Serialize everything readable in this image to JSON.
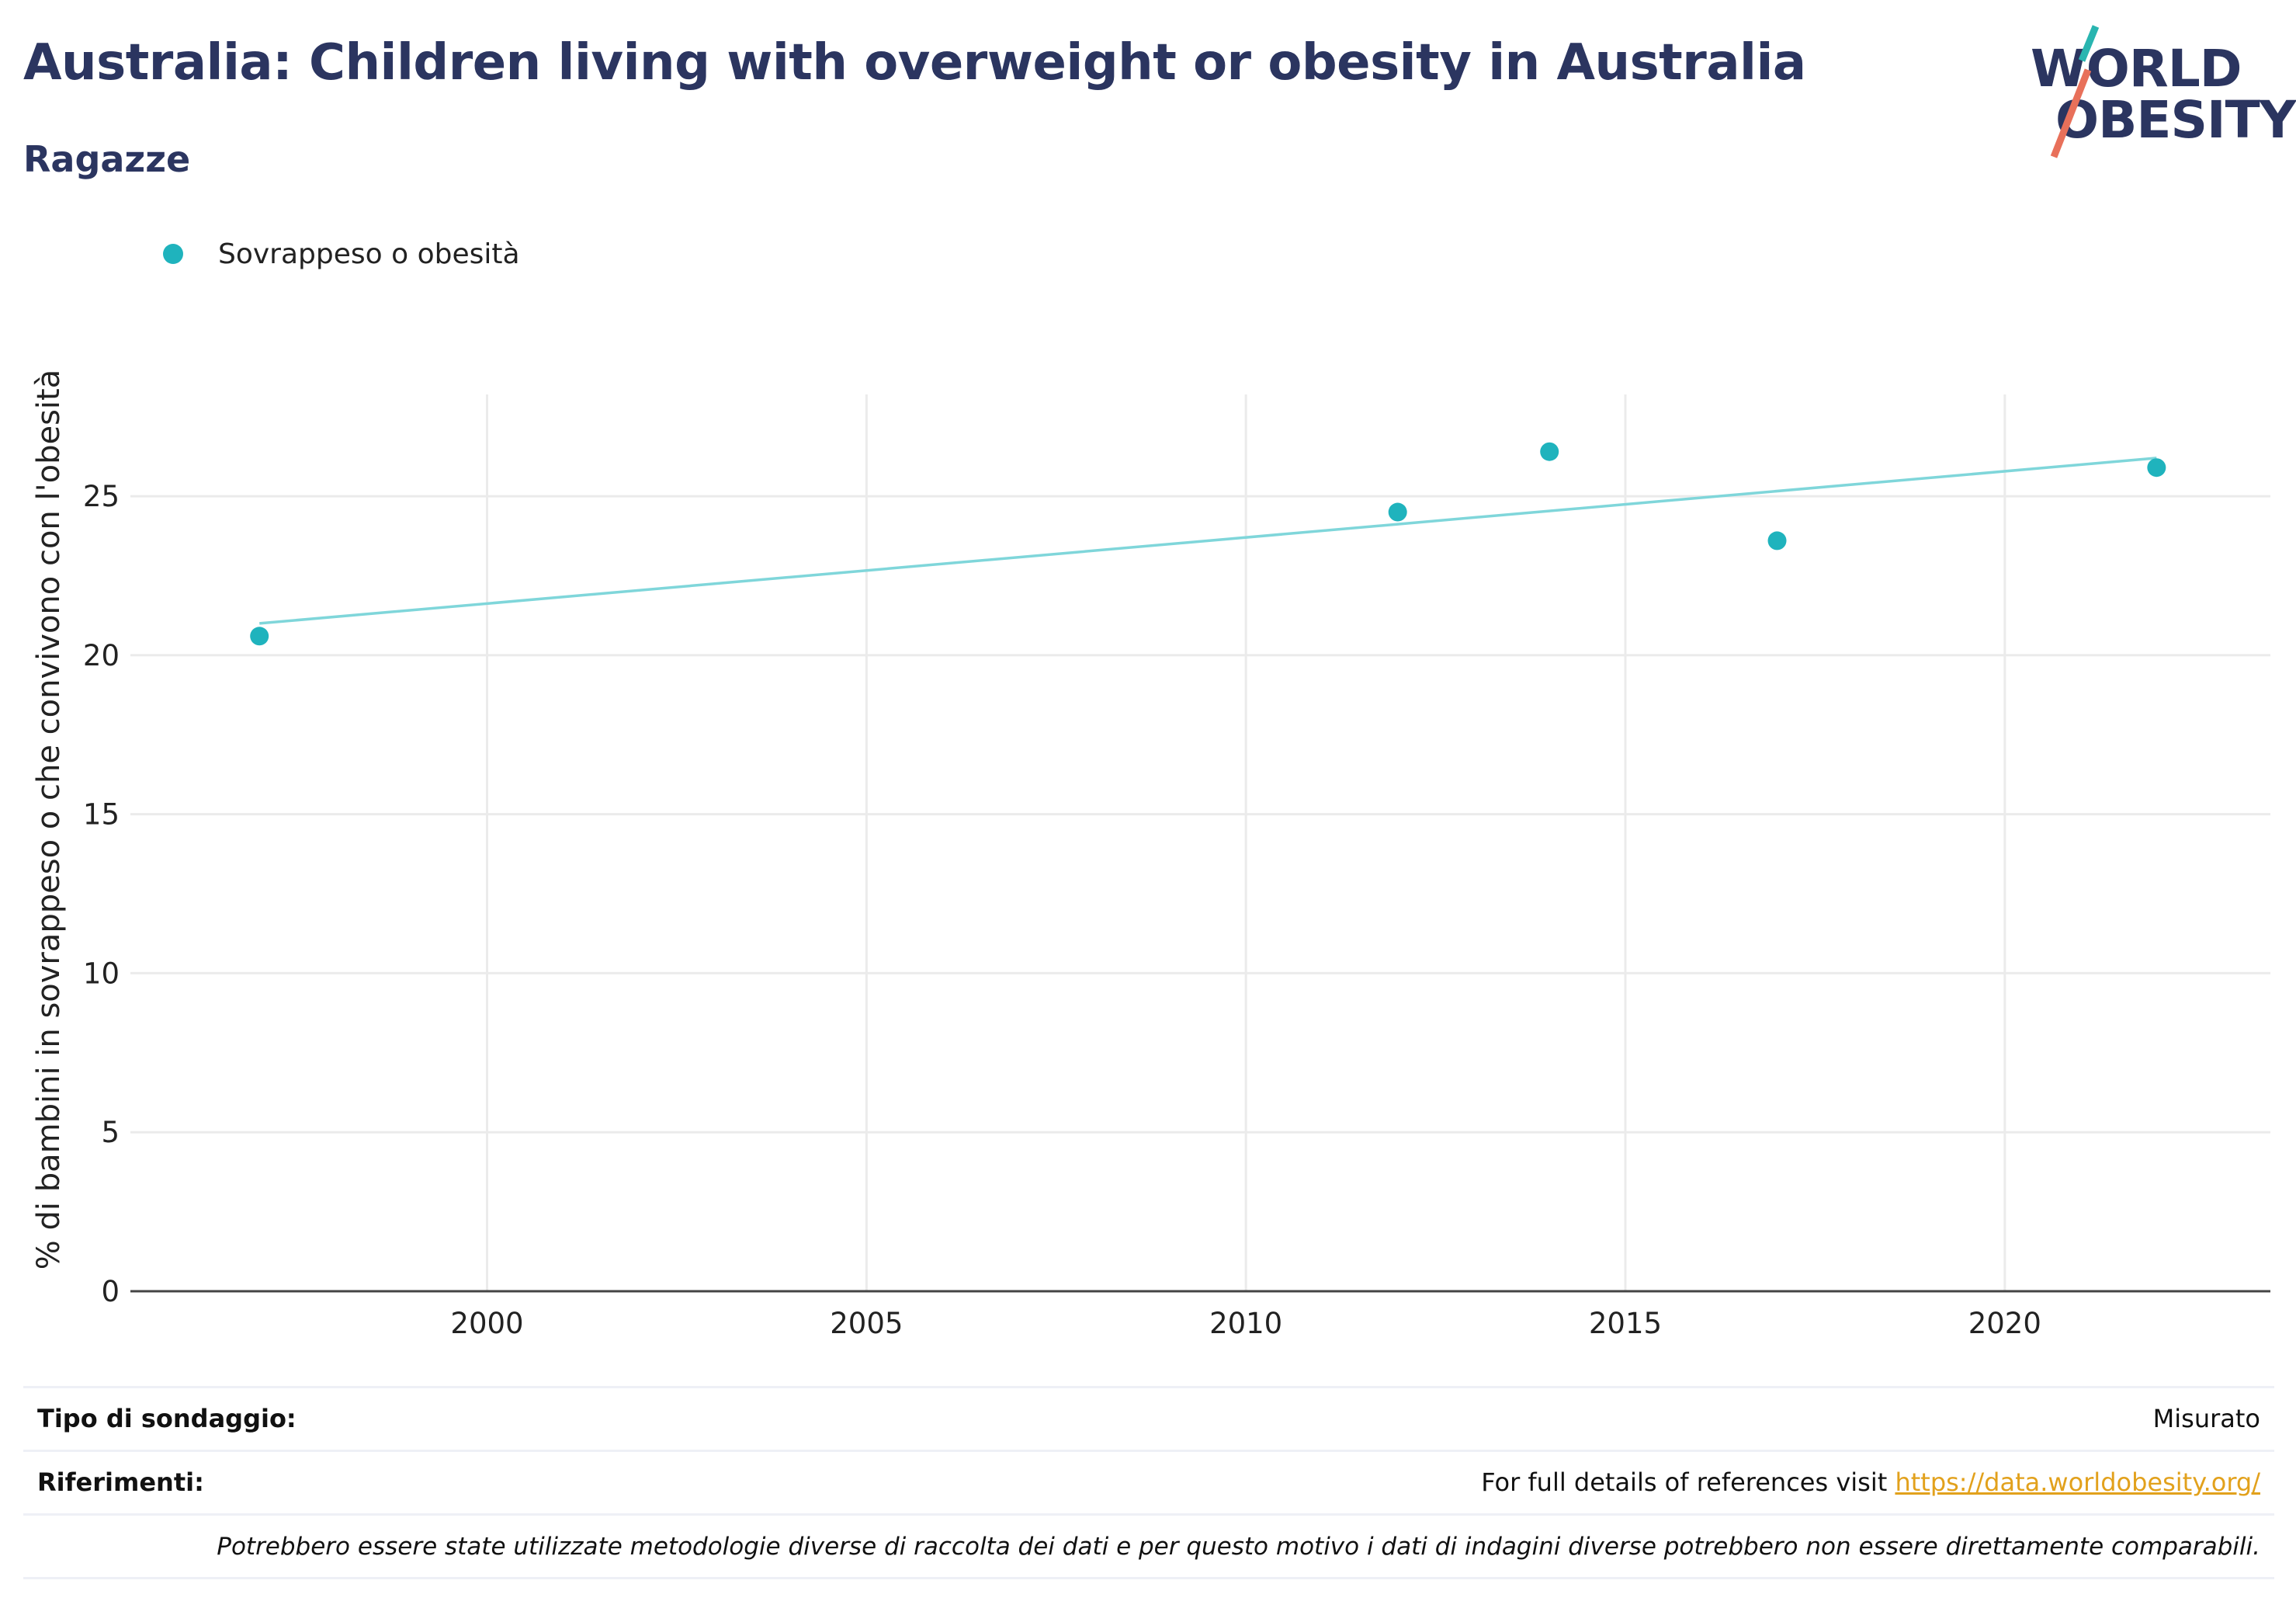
{
  "header": {
    "title": "Australia: Children living with overweight or obesity in Australia",
    "subtitle": "Ragazze"
  },
  "logo": {
    "line1": "WORLD",
    "line2": "OBESITY",
    "colors": {
      "text": "#2b3560",
      "slash_top": "#29b5b0",
      "slash_bottom": "#e8705a"
    }
  },
  "legend": {
    "label": "Sovrappeso o obesità",
    "color": "#1fb3bd"
  },
  "chart_data": {
    "type": "scatter",
    "ylabel": "% di bambini in sovrappeso o che convivono con l'obesità",
    "xlabel": "",
    "xlim": [
      1995.3,
      2023.5
    ],
    "ylim": [
      0,
      28.2
    ],
    "x_ticks": [
      2000,
      2005,
      2010,
      2015,
      2020
    ],
    "y_ticks": [
      0,
      5,
      10,
      15,
      20,
      25
    ],
    "grid": true,
    "legend_position": "top-left",
    "series": [
      {
        "name": "Sovrappeso o obesità",
        "color": "#1fb3bd",
        "points": [
          {
            "x": 1997,
            "y": 20.6
          },
          {
            "x": 2012,
            "y": 24.5
          },
          {
            "x": 2014,
            "y": 26.4
          },
          {
            "x": 2017,
            "y": 23.6
          },
          {
            "x": 2022,
            "y": 25.9
          }
        ]
      }
    ],
    "trendline": {
      "color": "#7fd6da",
      "from": {
        "x": 1997,
        "y": 21.0
      },
      "to": {
        "x": 2022,
        "y": 26.2
      }
    }
  },
  "footer": {
    "survey_label": "Tipo di sondaggio:",
    "survey_value": "Misurato",
    "refs_label": "Riferimenti:",
    "refs_text": "For full details of references visit ",
    "refs_link": "https://data.worldobesity.org/",
    "note": "Potrebbero essere state utilizzate metodologie diverse di raccolta dei dati e per questo motivo i dati di indagini diverse potrebbero non essere direttamente comparabili."
  }
}
